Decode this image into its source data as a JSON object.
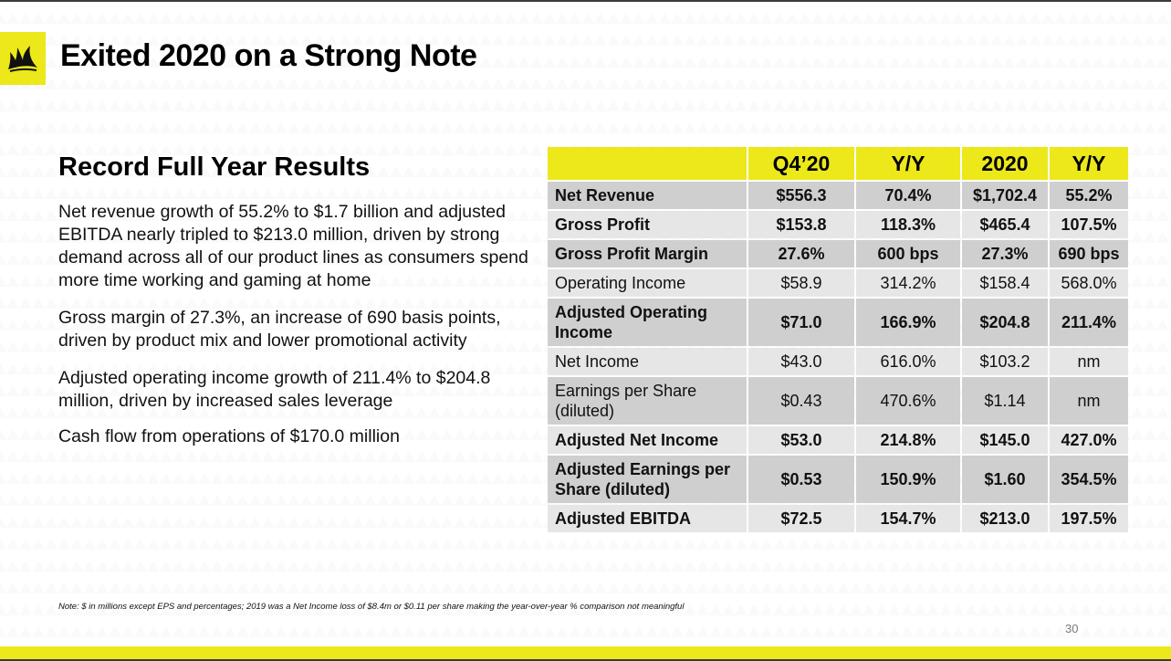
{
  "header": {
    "title": "Exited 2020 on a Strong Note",
    "logo_icon": "corsair-sails-logo-icon",
    "accent_color": "#ece81a"
  },
  "left": {
    "subtitle": "Record Full Year Results",
    "bullets": [
      "Net revenue growth of 55.2% to $1.7 billion and adjusted EBITDA nearly tripled to $213.0 million, driven by strong demand across all of our product lines as consumers spend more time working and gaming at home",
      "Gross margin of 27.3%, an increase of 690 basis points, driven by product mix and lower promotional activity",
      "Adjusted operating income growth of 211.4% to $204.8 million, driven by increased sales leverage",
      "Cash flow from operations of $170.0 million"
    ]
  },
  "table": {
    "headers": {
      "q4": "Q4’20",
      "q4_yy": "Y/Y",
      "fy": "2020",
      "fy_yy": "Y/Y"
    },
    "rows": [
      {
        "label": "Net Revenue",
        "q4": "$556.3",
        "q4_yy": "70.4%",
        "fy": "$1,702.4",
        "fy_yy": "55.2%"
      },
      {
        "label": "Gross Profit",
        "q4": "$153.8",
        "q4_yy": "118.3%",
        "fy": "$465.4",
        "fy_yy": "107.5%"
      },
      {
        "label": "Gross Profit Margin",
        "q4": "27.6%",
        "q4_yy": "600 bps",
        "fy": "27.3%",
        "fy_yy": "690 bps"
      },
      {
        "label": "Operating Income",
        "q4": "$58.9",
        "q4_yy": "314.2%",
        "fy": "$158.4",
        "fy_yy": "568.0%"
      },
      {
        "label": "Adjusted Operating Income",
        "q4": "$71.0",
        "q4_yy": "166.9%",
        "fy": "$204.8",
        "fy_yy": "211.4%"
      },
      {
        "label": "Net Income",
        "q4": "$43.0",
        "q4_yy": "616.0%",
        "fy": "$103.2",
        "fy_yy": "nm"
      },
      {
        "label": "Earnings per Share (diluted)",
        "q4": "$0.43",
        "q4_yy": "470.6%",
        "fy": "$1.14",
        "fy_yy": "nm"
      },
      {
        "label": "Adjusted Net Income",
        "q4": "$53.0",
        "q4_yy": "214.8%",
        "fy": "$145.0",
        "fy_yy": "427.0%"
      },
      {
        "label": "Adjusted Earnings per Share (diluted)",
        "q4": "$0.53",
        "q4_yy": "150.9%",
        "fy": "$1.60",
        "fy_yy": "354.5%"
      },
      {
        "label": "Adjusted EBITDA",
        "q4": "$72.5",
        "q4_yy": "154.7%",
        "fy": "$213.0",
        "fy_yy": "197.5%"
      }
    ]
  },
  "footer": {
    "note": "Note: $ in millions except EPS and percentages;  2019 was a Net Income loss of $8.4m or $0.11 per share making the year-over-year % comparison not meaningful",
    "page_number": "30"
  }
}
